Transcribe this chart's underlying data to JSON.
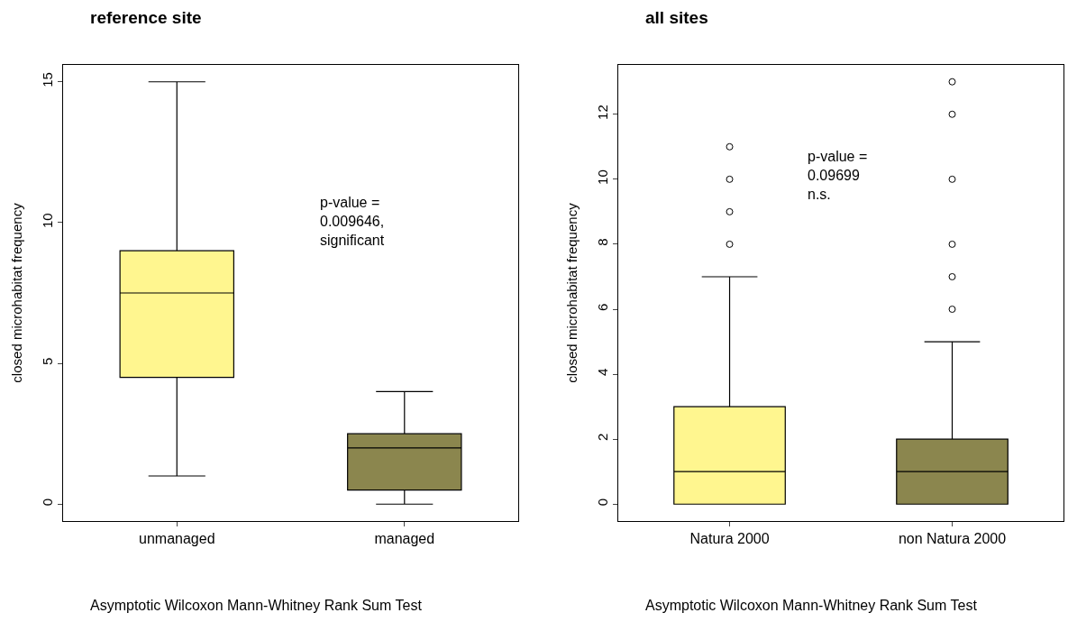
{
  "chart_data": [
    {
      "type": "box",
      "title": "reference site",
      "ylabel": "closed microhabitat frequency",
      "categories": [
        "unmanaged",
        "managed"
      ],
      "colors": [
        "#fff68f",
        "#8b864e"
      ],
      "boxes": [
        {
          "low": 1,
          "q1": 4.5,
          "median": 7.5,
          "q3": 9,
          "high": 15
        },
        {
          "low": 0,
          "q1": 0.5,
          "median": 2,
          "q3": 2.5,
          "high": 4
        }
      ],
      "ylim": [
        -0.6,
        15.6
      ],
      "yticks": [
        0,
        5,
        10,
        15
      ],
      "annotations": [
        "p-value =\n0.009646,\nsignificant",
        "Asymptotic Wilcoxon Mann-Whitney Rank Sum Test"
      ]
    },
    {
      "type": "box",
      "title": "all sites",
      "ylabel": "closed microhabitat frequency",
      "categories": [
        "Natura 2000",
        "non Natura 2000"
      ],
      "colors": [
        "#fff68f",
        "#8b864e"
      ],
      "boxes": [
        {
          "low": 0,
          "q1": 0,
          "median": 1,
          "q3": 3,
          "high": 7,
          "outliers": [
            8,
            9,
            10,
            11
          ]
        },
        {
          "low": 0,
          "q1": 0,
          "median": 1,
          "q3": 2,
          "high": 5,
          "outliers": [
            6,
            7,
            8,
            10,
            12,
            13
          ]
        }
      ],
      "ylim": [
        -0.52,
        13.52
      ],
      "yticks": [
        0,
        2,
        4,
        6,
        8,
        10,
        12
      ],
      "annotations": [
        "p-value =\n0.09699\nn.s.",
        "Asymptotic Wilcoxon Mann-Whitney Rank Sum Test"
      ]
    }
  ]
}
